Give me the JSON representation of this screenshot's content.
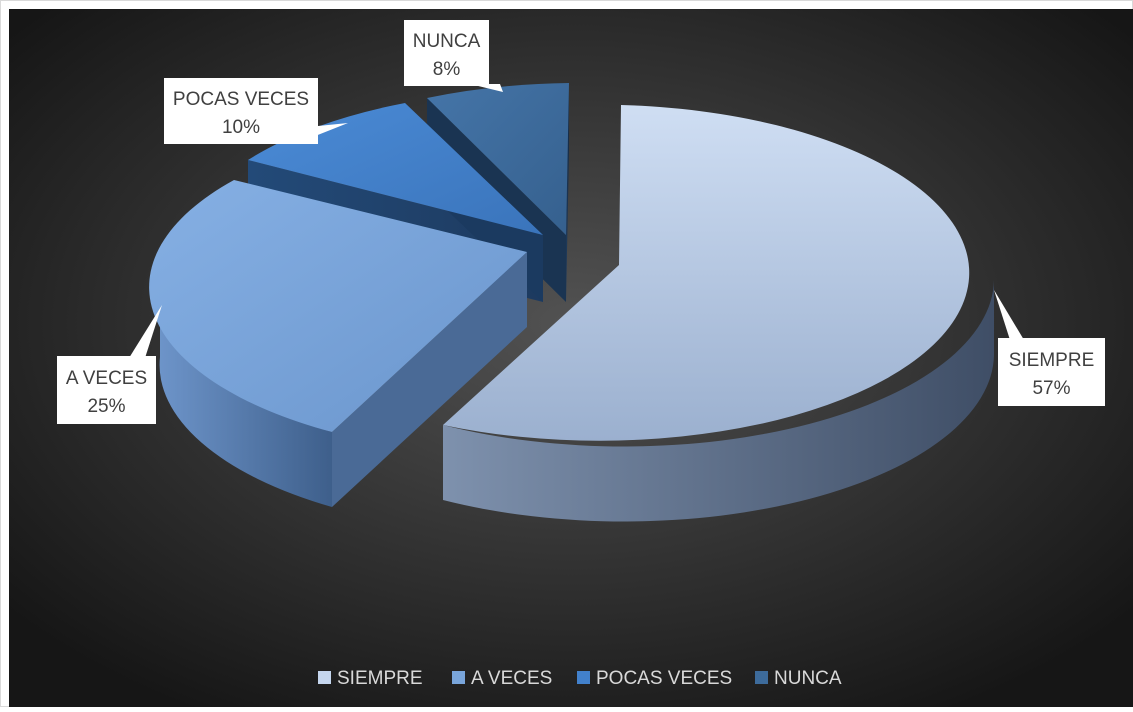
{
  "chart_data": {
    "type": "pie",
    "style": "3d-exploded",
    "title": "",
    "categories": [
      "SIEMPRE",
      "A VECES",
      "POCAS VECES",
      "NUNCA"
    ],
    "values": [
      57,
      25,
      10,
      8
    ],
    "value_labels": [
      "57%",
      "25%",
      "10%",
      "8%"
    ],
    "colors": [
      "#c5d6ee",
      "#79a5db",
      "#4281cc",
      "#3d6b9b"
    ],
    "side_colors": [
      "#6a7d9c",
      "#4d6d98",
      "#2c5786",
      "#223f62"
    ],
    "legend_position": "bottom",
    "background": "#2e2e2e"
  },
  "legend": {
    "items": [
      {
        "label": "SIEMPRE",
        "color": "#c5d6ee"
      },
      {
        "label": "A VECES",
        "color": "#79a5db"
      },
      {
        "label": "POCAS VECES",
        "color": "#4281cc"
      },
      {
        "label": "NUNCA",
        "color": "#3d6b9b"
      }
    ]
  }
}
